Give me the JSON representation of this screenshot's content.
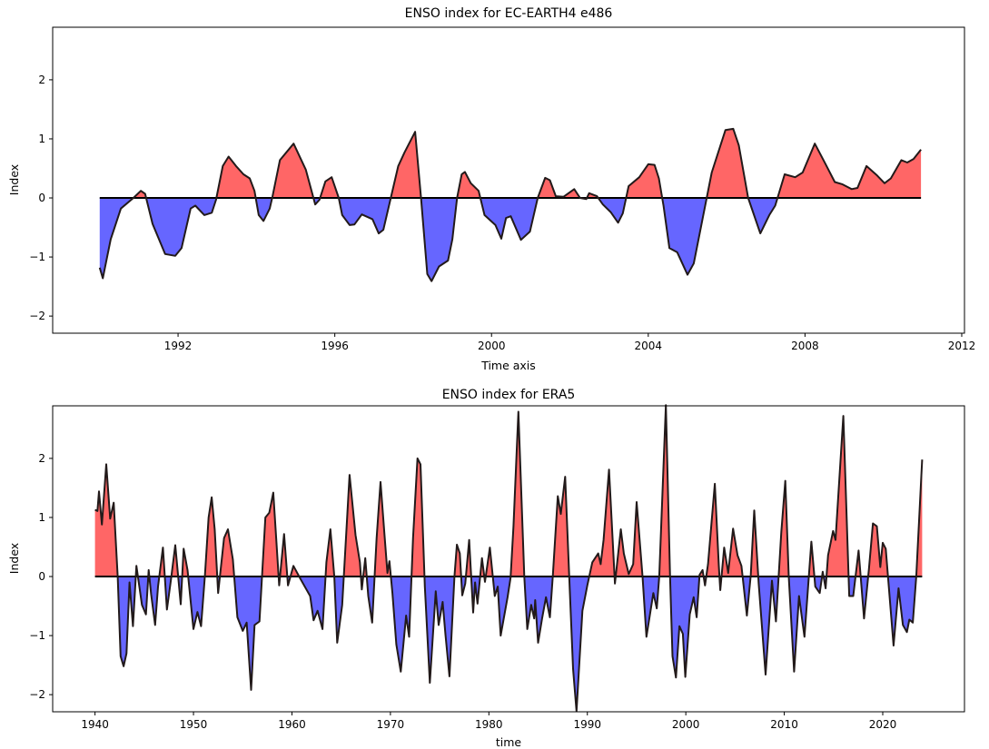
{
  "chart_data": [
    {
      "type": "area",
      "title": "ENSO index for EC-EARTH4 e486",
      "xlabel": "Time axis",
      "ylabel": "Index",
      "xlim": [
        1988.8,
        2012.07
      ],
      "ylim": [
        -2.29,
        2.89
      ],
      "xticks": [
        1992,
        1996,
        2000,
        2004,
        2008,
        2012
      ],
      "yticks": [
        -2,
        -1,
        0,
        1,
        2
      ],
      "grid": false,
      "colors": {
        "positive": "#ff6666",
        "negative": "#6666ff",
        "line": "#221a1a",
        "zero_line": "#000000"
      },
      "x": [
        1990.0,
        1990.08,
        1990.28,
        1990.54,
        1990.86,
        1991.05,
        1991.16,
        1991.35,
        1991.67,
        1991.93,
        1992.09,
        1992.32,
        1992.44,
        1992.67,
        1992.86,
        1992.97,
        1993.14,
        1993.29,
        1993.48,
        1993.67,
        1993.83,
        1993.95,
        1994.06,
        1994.18,
        1994.34,
        1994.41,
        1994.6,
        1994.95,
        1995.26,
        1995.5,
        1995.61,
        1995.76,
        1995.92,
        1996.1,
        1996.19,
        1996.38,
        1996.5,
        1996.69,
        1996.96,
        1997.12,
        1997.24,
        1997.43,
        1997.62,
        1997.78,
        1998.05,
        1998.2,
        1998.36,
        1998.47,
        1998.66,
        1998.89,
        1999.0,
        1999.12,
        1999.24,
        1999.32,
        1999.47,
        1999.67,
        1999.82,
        2000.1,
        2000.25,
        2000.37,
        2000.49,
        2000.75,
        2000.98,
        2001.18,
        2001.37,
        2001.49,
        2001.64,
        2001.84,
        2002.11,
        2002.26,
        2002.42,
        2002.49,
        2002.69,
        2002.84,
        2003.04,
        2003.23,
        2003.35,
        2003.5,
        2003.77,
        2004.0,
        2004.16,
        2004.27,
        2004.39,
        2004.54,
        2004.74,
        2005.0,
        2005.16,
        2005.39,
        2005.62,
        2005.97,
        2006.17,
        2006.31,
        2006.55,
        2006.86,
        2007.09,
        2007.24,
        2007.48,
        2007.75,
        2007.94,
        2008.25,
        2008.52,
        2008.76,
        2008.96,
        2009.19,
        2009.34,
        2009.57,
        2009.84,
        2010.03,
        2010.19,
        2010.46,
        2010.61,
        2010.77,
        2010.96
      ],
      "y": [
        -1.18,
        -1.36,
        -0.7,
        -0.18,
        0.0,
        0.12,
        0.07,
        -0.44,
        -0.95,
        -0.98,
        -0.85,
        -0.18,
        -0.13,
        -0.29,
        -0.25,
        -0.03,
        0.54,
        0.7,
        0.54,
        0.4,
        0.33,
        0.12,
        -0.29,
        -0.39,
        -0.18,
        0.02,
        0.64,
        0.92,
        0.48,
        -0.11,
        -0.03,
        0.28,
        0.35,
        0.0,
        -0.29,
        -0.46,
        -0.45,
        -0.28,
        -0.36,
        -0.6,
        -0.54,
        0.0,
        0.54,
        0.77,
        1.12,
        0.0,
        -1.29,
        -1.41,
        -1.16,
        -1.06,
        -0.7,
        0.0,
        0.4,
        0.44,
        0.25,
        0.12,
        -0.29,
        -0.46,
        -0.69,
        -0.34,
        -0.31,
        -0.71,
        -0.57,
        0.0,
        0.34,
        0.3,
        0.03,
        0.02,
        0.15,
        0.0,
        -0.02,
        0.08,
        0.03,
        -0.11,
        -0.24,
        -0.42,
        -0.26,
        0.2,
        0.35,
        0.57,
        0.56,
        0.33,
        -0.13,
        -0.85,
        -0.92,
        -1.3,
        -1.11,
        -0.34,
        0.43,
        1.15,
        1.17,
        0.89,
        0.0,
        -0.6,
        -0.29,
        -0.13,
        0.4,
        0.35,
        0.43,
        0.92,
        0.58,
        0.27,
        0.23,
        0.15,
        0.17,
        0.54,
        0.38,
        0.25,
        0.33,
        0.64,
        0.6,
        0.66,
        0.82
      ]
    },
    {
      "type": "area",
      "title": "ENSO index for ERA5",
      "xlabel": "time",
      "ylabel": "Index",
      "xlim": [
        1935.7,
        2028.3
      ],
      "ylim": [
        -2.29,
        2.89
      ],
      "xticks": [
        1940,
        1950,
        1960,
        1970,
        1980,
        1990,
        2000,
        2010,
        2020
      ],
      "yticks": [
        -2,
        -1,
        0,
        1,
        2
      ],
      "grid": false,
      "colors": {
        "positive": "#ff6666",
        "negative": "#6666ff",
        "line": "#221a1a",
        "zero_line": "#000000"
      },
      "x": [
        1940.0,
        1940.25,
        1940.4,
        1940.7,
        1941.14,
        1941.54,
        1941.9,
        1942.3,
        1942.6,
        1942.9,
        1943.2,
        1943.5,
        1943.85,
        1944.2,
        1944.77,
        1945.17,
        1945.45,
        1945.7,
        1946.1,
        1946.4,
        1946.9,
        1947.3,
        1947.7,
        1948.15,
        1948.7,
        1949.0,
        1949.4,
        1950.0,
        1950.4,
        1950.77,
        1951.17,
        1951.54,
        1951.85,
        1952.15,
        1952.5,
        1953.1,
        1953.5,
        1954.0,
        1954.46,
        1955.0,
        1955.4,
        1955.85,
        1956.2,
        1956.7,
        1957.3,
        1957.7,
        1958.1,
        1958.4,
        1958.7,
        1959.2,
        1959.6,
        1960.15,
        1960.9,
        1961.85,
        1962.2,
        1962.6,
        1963.1,
        1963.5,
        1963.9,
        1964.3,
        1964.6,
        1965.1,
        1965.85,
        1966.46,
        1966.9,
        1967.1,
        1967.45,
        1967.75,
        1968.15,
        1968.6,
        1969.0,
        1969.4,
        1969.7,
        1969.9,
        1970.2,
        1970.6,
        1971.05,
        1971.6,
        1971.9,
        1972.3,
        1972.75,
        1973.05,
        1973.5,
        1974.0,
        1974.6,
        1974.9,
        1975.3,
        1975.6,
        1976.0,
        1976.5,
        1976.75,
        1977.05,
        1977.3,
        1977.6,
        1978.0,
        1978.4,
        1978.6,
        1978.85,
        1979.3,
        1979.6,
        1980.1,
        1980.6,
        1980.9,
        1981.2,
        1981.9,
        1982.2,
        1982.5,
        1983.0,
        1983.6,
        1983.9,
        1984.3,
        1984.6,
        1984.7,
        1985.0,
        1985.4,
        1985.8,
        1986.2,
        1986.5,
        1987.0,
        1987.3,
        1987.75,
        1988.15,
        1988.55,
        1988.9,
        1989.5,
        1990.0,
        1990.5,
        1991.1,
        1991.35,
        1991.65,
        1992.2,
        1992.8,
        1993.4,
        1993.7,
        1994.2,
        1994.65,
        1995.0,
        1995.6,
        1996.0,
        1996.7,
        1997.05,
        1997.3,
        1997.97,
        1998.4,
        1998.65,
        1999.0,
        1999.35,
        1999.7,
        1999.95,
        2000.4,
        2000.8,
        2001.1,
        2001.4,
        2001.7,
        2001.95,
        2002.25,
        2002.95,
        2003.35,
        2003.5,
        2003.9,
        2004.3,
        2004.8,
        2005.25,
        2005.65,
        2006.2,
        2006.6,
        2006.95,
        2007.4,
        2008.1,
        2008.75,
        2009.15,
        2009.7,
        2010.1,
        2010.45,
        2011.0,
        2011.5,
        2012.05,
        2012.75,
        2013.15,
        2013.6,
        2013.9,
        2014.2,
        2014.45,
        2014.95,
        2015.2,
        2016.0,
        2016.6,
        2017.0,
        2017.55,
        2018.1,
        2018.6,
        2019.0,
        2019.4,
        2019.75,
        2020.0,
        2020.3,
        2021.1,
        2021.6,
        2022.05,
        2022.45,
        2022.7,
        2023.05,
        2023.4,
        2024.0
      ],
      "y": [
        1.13,
        1.11,
        1.44,
        0.88,
        1.9,
        0.98,
        1.25,
        0,
        -1.35,
        -1.52,
        -1.3,
        -0.1,
        -0.84,
        0.18,
        -0.48,
        -0.64,
        0.11,
        -0.3,
        -0.82,
        -0.17,
        0.49,
        -0.56,
        -0.07,
        0.53,
        -0.47,
        0.47,
        0.11,
        -0.89,
        -0.6,
        -0.84,
        0.03,
        1.0,
        1.34,
        0.8,
        -0.28,
        0.65,
        0.8,
        0.29,
        -0.69,
        -0.92,
        -0.78,
        -1.92,
        -0.82,
        -0.76,
        1.0,
        1.08,
        1.42,
        0.65,
        -0.15,
        0.72,
        -0.15,
        0.18,
        -0.05,
        -0.33,
        -0.74,
        -0.58,
        -0.89,
        0.24,
        0.8,
        0,
        -1.12,
        -0.48,
        1.72,
        0.7,
        0.24,
        -0.22,
        0.31,
        -0.33,
        -0.78,
        0.65,
        1.6,
        0.7,
        0.06,
        0.26,
        -0.28,
        -1.15,
        -1.61,
        -0.66,
        -1.02,
        0.65,
        2.0,
        1.9,
        -0.17,
        -1.8,
        -0.25,
        -0.82,
        -0.43,
        -1.0,
        -1.69,
        0,
        0.54,
        0.39,
        -0.32,
        -0.12,
        0.62,
        -0.61,
        -0.1,
        -0.46,
        0.31,
        -0.09,
        0.49,
        -0.33,
        -0.17,
        -1.0,
        -0.35,
        -0.02,
        0.85,
        2.79,
        0,
        -0.89,
        -0.48,
        -0.71,
        -0.4,
        -1.12,
        -0.71,
        -0.35,
        -0.69,
        0.03,
        1.36,
        1.06,
        1.69,
        0.03,
        -1.56,
        -2.28,
        -0.58,
        -0.15,
        0.24,
        0.39,
        0.21,
        0.62,
        1.81,
        -0.12,
        0.8,
        0.39,
        0.04,
        0.21,
        1.26,
        0,
        -1.02,
        -0.28,
        -0.54,
        0,
        2.9,
        0,
        -1.35,
        -1.71,
        -0.84,
        -0.97,
        -1.7,
        -0.64,
        -0.35,
        -0.69,
        0.03,
        0.11,
        -0.15,
        0.21,
        1.57,
        0.18,
        -0.23,
        0.49,
        0.06,
        0.81,
        0.36,
        0.18,
        -0.66,
        0.03,
        1.12,
        -0.12,
        -1.66,
        -0.07,
        -0.76,
        0.75,
        1.62,
        0,
        -1.61,
        -0.33,
        -1.02,
        0.59,
        -0.17,
        -0.28,
        0.08,
        -0.2,
        0.36,
        0.77,
        0.62,
        2.72,
        -0.33,
        -0.33,
        0.44,
        -0.71,
        0.13,
        0.9,
        0.85,
        0.16,
        0.57,
        0.47,
        -1.17,
        -0.2,
        -0.82,
        -0.94,
        -0.73,
        -0.78,
        0,
        1.98
      ]
    }
  ]
}
